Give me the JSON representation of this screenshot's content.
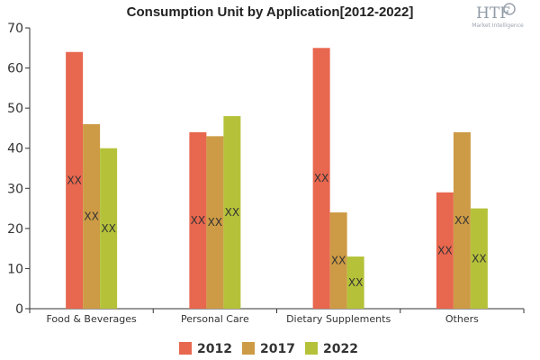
{
  "logo": {
    "brand": "HTF",
    "tagline": "Market Intelligence"
  },
  "chart_data": {
    "type": "bar",
    "title": "Consumption Unit by  Application[2012-2022]",
    "xlabel": "",
    "ylabel": "",
    "ylim": [
      0,
      70
    ],
    "yticks": [
      0,
      10,
      20,
      30,
      40,
      50,
      60,
      70
    ],
    "grid": false,
    "legend_position": "bottom",
    "categories": [
      "Food & Beverages",
      "Personal Care",
      "Dietary Supplements",
      "Others"
    ],
    "series": [
      {
        "name": "2012",
        "color": "#e8674f",
        "values": [
          64,
          44,
          65,
          29
        ]
      },
      {
        "name": "2017",
        "color": "#cd9b45",
        "values": [
          46,
          43,
          24,
          44
        ]
      },
      {
        "name": "2022",
        "color": "#b5c239",
        "values": [
          40,
          48,
          13,
          25
        ]
      }
    ],
    "data_label": "XX"
  }
}
